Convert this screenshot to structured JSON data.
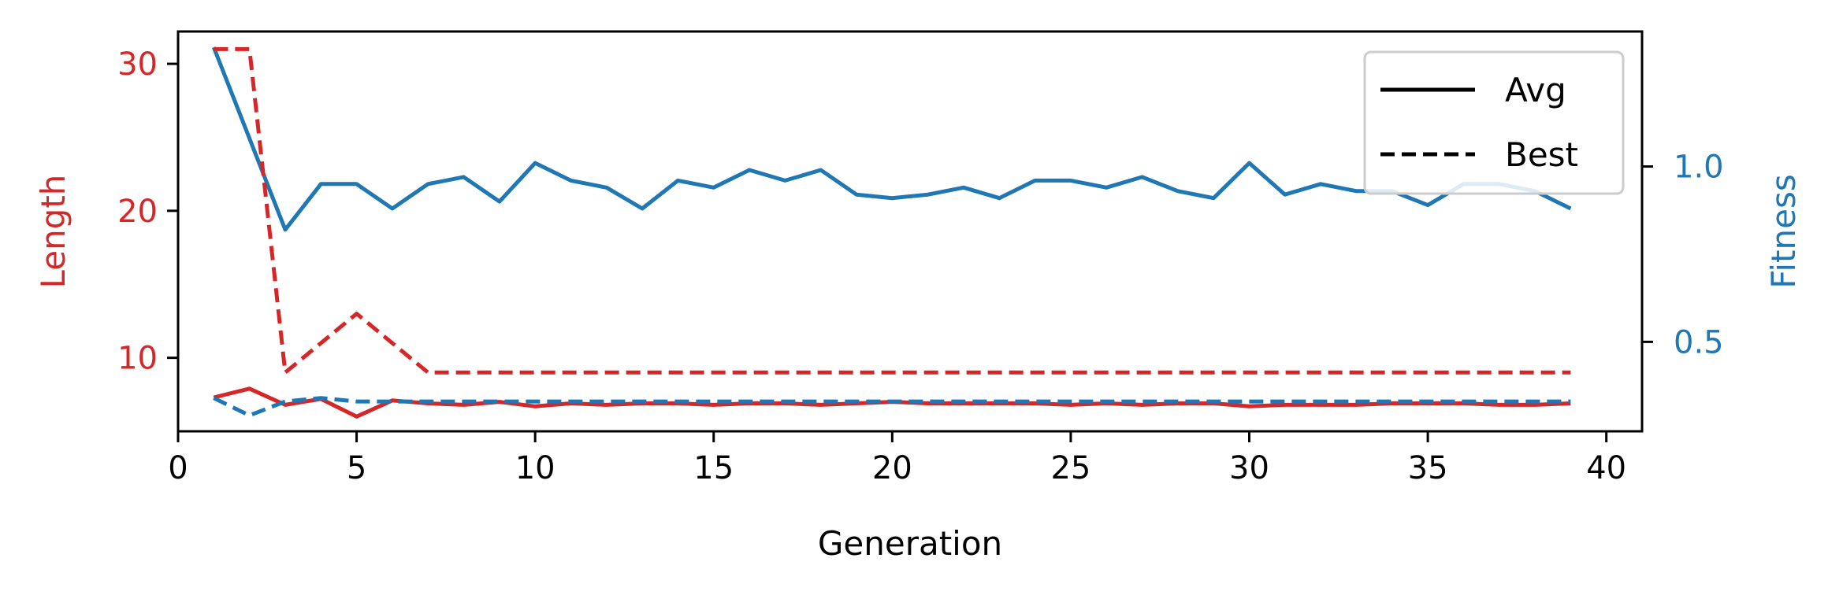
{
  "colors": {
    "length": "#d62728",
    "fitness": "#1f77b4",
    "axis": "#000000"
  },
  "chart_data": {
    "type": "line",
    "title": "",
    "xlabel": "Generation",
    "ylabel_left": "Length",
    "ylabel_right": "Fitness",
    "xlim": [
      0,
      41
    ],
    "ylim_left": [
      5,
      32.2
    ],
    "ylim_right": [
      0.245,
      1.385
    ],
    "xticks": [
      0,
      5,
      10,
      15,
      20,
      25,
      30,
      35,
      40
    ],
    "yticks_left": [
      10,
      20,
      30
    ],
    "yticks_right": [
      0.5,
      1.0
    ],
    "x": [
      1,
      2,
      3,
      4,
      5,
      6,
      7,
      8,
      9,
      10,
      11,
      12,
      13,
      14,
      15,
      16,
      17,
      18,
      19,
      20,
      21,
      22,
      23,
      24,
      25,
      26,
      27,
      28,
      29,
      30,
      31,
      32,
      33,
      34,
      35,
      36,
      37,
      38,
      39
    ],
    "legend": {
      "position": "top-right",
      "entries": [
        {
          "label": "Avg",
          "style": "solid"
        },
        {
          "label": "Best",
          "style": "dashed"
        }
      ]
    },
    "series": [
      {
        "axis": "left",
        "color": "#d62728",
        "style": "solid",
        "label": "Avg",
        "values": [
          7.3,
          7.9,
          6.8,
          7.2,
          6.0,
          7.1,
          6.9,
          6.8,
          7.0,
          6.7,
          6.9,
          6.8,
          6.9,
          6.9,
          6.8,
          6.9,
          6.9,
          6.8,
          6.9,
          7.0,
          6.9,
          6.9,
          6.9,
          6.9,
          6.8,
          6.9,
          6.8,
          6.9,
          6.9,
          6.7,
          6.8,
          6.8,
          6.8,
          6.9,
          6.9,
          6.9,
          6.8,
          6.8,
          6.9
        ]
      },
      {
        "axis": "left",
        "color": "#d62728",
        "style": "dashed",
        "label": "Best",
        "values": [
          31.0,
          31.0,
          9.0,
          11.0,
          13.0,
          11.0,
          9.0,
          9.0,
          9.0,
          9.0,
          9.0,
          9.0,
          9.0,
          9.0,
          9.0,
          9.0,
          9.0,
          9.0,
          9.0,
          9.0,
          9.0,
          9.0,
          9.0,
          9.0,
          9.0,
          9.0,
          9.0,
          9.0,
          9.0,
          9.0,
          9.0,
          9.0,
          9.0,
          9.0,
          9.0,
          9.0,
          9.0,
          9.0,
          9.0
        ]
      },
      {
        "axis": "right",
        "color": "#1f77b4",
        "style": "solid",
        "label": "Avg",
        "values": [
          1.34,
          1.08,
          0.82,
          0.95,
          0.95,
          0.88,
          0.95,
          0.97,
          0.9,
          1.01,
          0.96,
          0.94,
          0.88,
          0.96,
          0.94,
          0.99,
          0.96,
          0.99,
          0.92,
          0.91,
          0.92,
          0.94,
          0.91,
          0.96,
          0.96,
          0.94,
          0.97,
          0.93,
          0.91,
          1.01,
          0.92,
          0.95,
          0.93,
          0.93,
          0.89,
          0.95,
          0.95,
          0.93,
          0.88
        ]
      },
      {
        "axis": "right",
        "color": "#1f77b4",
        "style": "dashed",
        "label": "Best",
        "values": [
          0.34,
          0.29,
          0.33,
          0.34,
          0.33,
          0.33,
          0.33,
          0.33,
          0.33,
          0.33,
          0.33,
          0.33,
          0.33,
          0.33,
          0.33,
          0.33,
          0.33,
          0.33,
          0.33,
          0.33,
          0.33,
          0.33,
          0.33,
          0.33,
          0.33,
          0.33,
          0.33,
          0.33,
          0.33,
          0.33,
          0.33,
          0.33,
          0.33,
          0.33,
          0.33,
          0.33,
          0.33,
          0.33,
          0.33
        ]
      }
    ]
  }
}
